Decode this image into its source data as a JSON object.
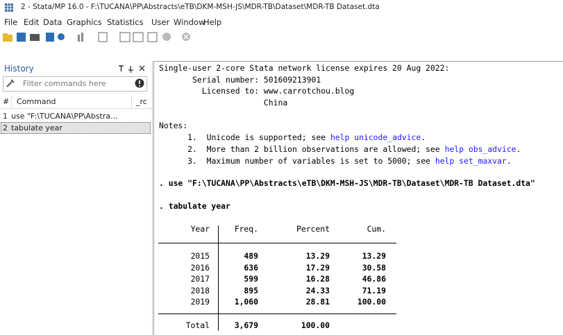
{
  "window": {
    "title": "2 - Stata/MP 16.0 - F:\\TUCANA\\PP\\Abstracts\\eTB\\DKM-MSH-JS\\MDR-TB\\Dataset\\MDR-TB Dataset.dta"
  },
  "menu": [
    "File",
    "Edit",
    "Data",
    "Graphics",
    "Statistics",
    "User",
    "Window",
    "Help"
  ],
  "history": {
    "title": "History",
    "filter_placeholder": "Filter commands here",
    "columns": [
      "#",
      "Command",
      "_rc"
    ],
    "rows": [
      [
        "1",
        "use \"F:\\TUCANA\\PP\\Abstra..."
      ],
      [
        "2",
        "tabulate year"
      ]
    ]
  },
  "results": {
    "license": "Single-user 2-core Stata network license expires 20 Aug 2022:",
    "serial_label": "Serial number:",
    "serial": "501609213901",
    "licensed_label": "Licensed to:",
    "licensed_lines": [
      "www.carrotchou.blog",
      "China"
    ],
    "notes_title": "Notes:",
    "notes": [
      {
        "num": "1.",
        "text": "Unicode is supported; see",
        "link": "help unicode_advice",
        "end": "."
      },
      {
        "num": "2.",
        "text": "More than 2 billion observations are allowed; see",
        "link": "help obs_advice",
        "end": "."
      },
      {
        "num": "3.",
        "text": "Maximum number of variables is set to 5000; see",
        "link": "help set_maxvar",
        "end": "."
      }
    ],
    "commands": [
      ". use \"F:\\TUCANA\\PP\\Abstracts\\eTB\\DKM-MSH-JS\\MDR-TB\\Dataset\\MDR-TB Dataset.dta\"",
      ". tabulate year"
    ],
    "table": {
      "columns": [
        "Year",
        "Freq.",
        "Percent",
        "Cum."
      ],
      "rows": [
        [
          "2015",
          "489",
          "13.29",
          "13.29"
        ],
        [
          "2016",
          "636",
          "17.29",
          "30.58"
        ],
        [
          "2017",
          "599",
          "16.28",
          "46.86"
        ],
        [
          "2018",
          "895",
          "24.33",
          "71.19"
        ],
        [
          "2019",
          "1,060",
          "28.81",
          "100.00"
        ]
      ],
      "total": [
        "Total",
        "3,679",
        "100.00"
      ]
    }
  }
}
